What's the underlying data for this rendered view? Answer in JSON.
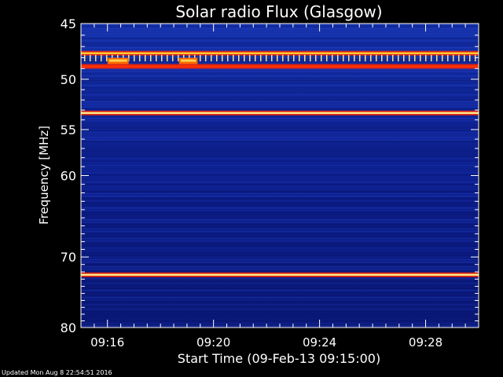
{
  "chart_data": {
    "type": "heatmap",
    "title": "Solar radio Flux (Glasgow)",
    "ylabel": "Frequency [MHz]",
    "xlabel": "Start Time (09-Feb-13 09:15:00)",
    "y_axis": {
      "range": [
        45,
        80
      ],
      "direction": "top-to-bottom",
      "scale": "log",
      "tick_labels": [
        "45",
        "50",
        "55",
        "60",
        "70",
        "80"
      ],
      "tick_values": [
        45,
        50,
        55,
        60,
        70,
        80
      ]
    },
    "x_axis": {
      "range": [
        "09:15:00",
        "09:30:00"
      ],
      "tick_labels": [
        "09:16",
        "09:20",
        "09:24",
        "09:28"
      ],
      "tick_values_min": [
        16,
        20,
        24,
        28
      ]
    },
    "x_start_min": 15.0,
    "x_end_min": 30.0,
    "background_color": "#0c1e8c",
    "interference_bands_mhz": [
      {
        "freq": 47.6,
        "color": "#ffcc33"
      },
      {
        "freq": 48.8,
        "color": "#ff3300"
      },
      {
        "freq": 53.3,
        "color": "#ffee88"
      },
      {
        "freq": 72.4,
        "color": "#ffee88"
      }
    ],
    "bursts": [
      {
        "freq": 48.3,
        "start_min": 16.0,
        "end_min": 16.8
      },
      {
        "freq": 48.3,
        "start_min": 18.7,
        "end_min": 19.4
      }
    ],
    "grid": false,
    "legend": "none"
  },
  "footer": {
    "updated": "Updated Mon Aug  8 22:54:51 2016"
  }
}
